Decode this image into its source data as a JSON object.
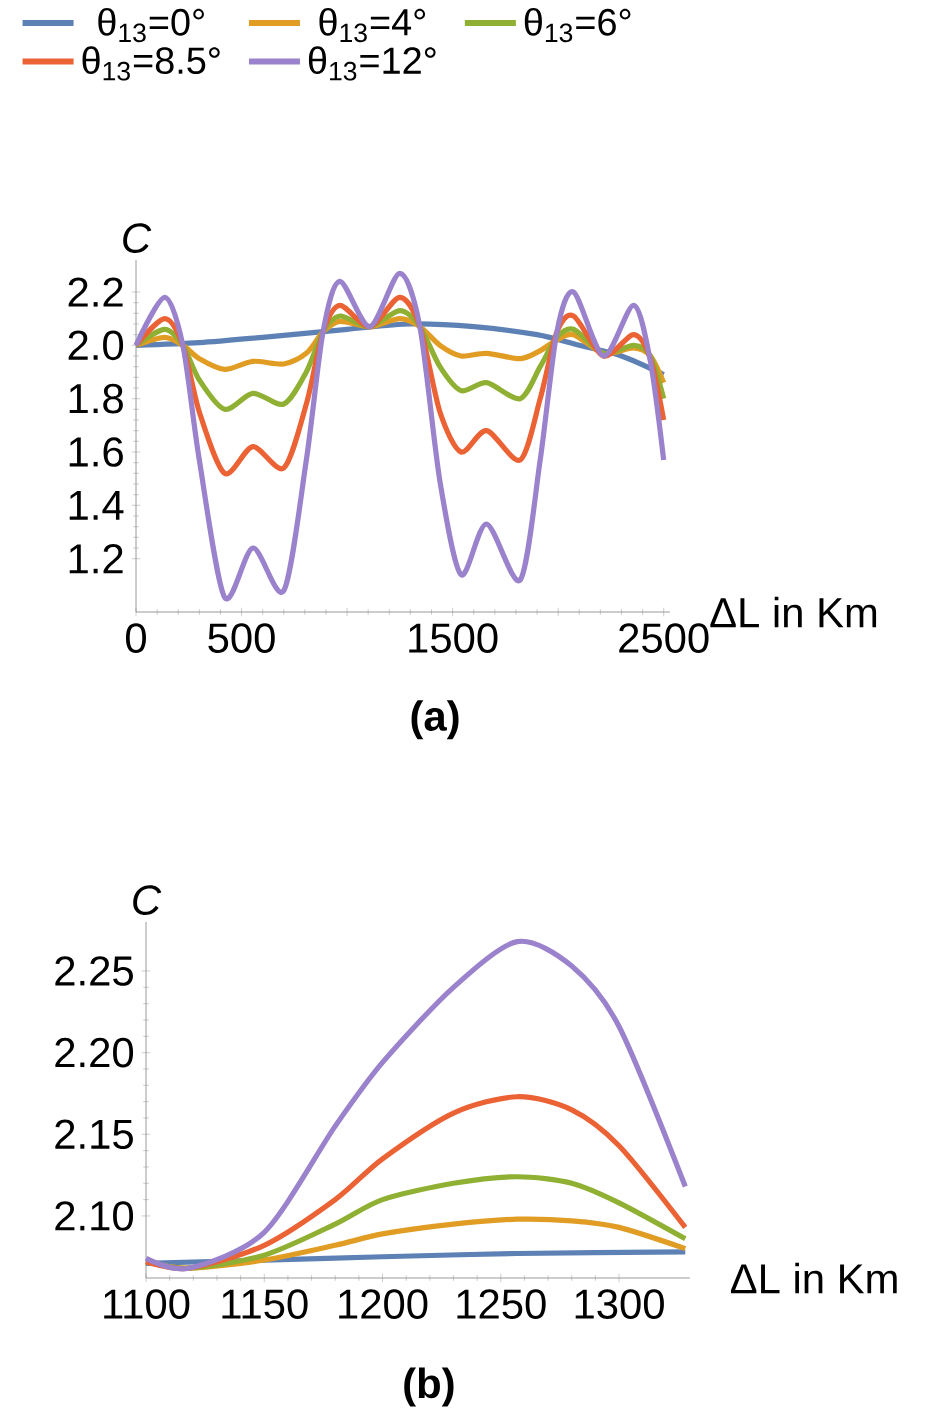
{
  "chart_data": [
    {
      "type": "line",
      "title": "(a)",
      "xlabel": "ΔL in Km",
      "ylabel": "C",
      "legend": "top",
      "xlim": [
        0,
        2530
      ],
      "ylim": [
        1.0,
        2.32
      ],
      "xticks": [
        0,
        500,
        {
          "value": 1000,
          "label": null
        },
        1500,
        {
          "value": 2000,
          "label": null
        },
        2500
      ],
      "yticks": [
        {
          "value": 1.2,
          "label": "1.2"
        },
        {
          "value": 1.4,
          "label": "1.4"
        },
        {
          "value": 1.6,
          "label": "1.6"
        },
        {
          "value": 1.8,
          "label": "1.8"
        },
        {
          "value": 2.0,
          "label": "2.0"
        },
        {
          "value": 2.2,
          "label": "2.2"
        }
      ],
      "x": [
        0,
        136,
        222,
        300,
        420,
        554,
        700,
        807,
        886,
        965,
        1108,
        1250,
        1345,
        1440,
        1540,
        1661,
        1820,
        1915,
        1994,
        2073,
        2215,
        2358,
        2437,
        2500
      ],
      "series": [
        {
          "name": "θ$_{13}$=0°",
          "color": "#5e81b5",
          "x": [
            0,
            300,
            600,
            1000,
            1300,
            1600,
            1900,
            2100,
            2300,
            2500
          ],
          "values": [
            2.0,
            2.01,
            2.03,
            2.06,
            2.08,
            2.07,
            2.04,
            2.0,
            1.96,
            1.89
          ]
        },
        {
          "name": "θ$_{13}$=4°",
          "color": "#e19c24",
          "values": [
            2.0,
            2.03,
            2.0,
            1.95,
            1.91,
            1.94,
            1.93,
            1.97,
            2.05,
            2.09,
            2.07,
            2.1,
            2.07,
            2.0,
            1.96,
            1.97,
            1.95,
            1.98,
            2.02,
            2.04,
            1.97,
            1.99,
            1.96,
            1.86
          ]
        },
        {
          "name": "θ$_{13}$=6°",
          "color": "#8fb032",
          "values": [
            2.0,
            2.06,
            2.0,
            1.87,
            1.76,
            1.82,
            1.78,
            1.9,
            2.05,
            2.11,
            2.07,
            2.13,
            2.07,
            1.92,
            1.83,
            1.86,
            1.8,
            1.92,
            2.03,
            2.06,
            1.97,
            2.0,
            1.96,
            1.8
          ]
        },
        {
          "name": "θ$_{13}$=8.5°",
          "color": "#eb6235",
          "values": [
            2.0,
            2.1,
            2.0,
            1.75,
            1.52,
            1.62,
            1.54,
            1.78,
            2.05,
            2.15,
            2.07,
            2.18,
            2.07,
            1.75,
            1.6,
            1.68,
            1.57,
            1.8,
            2.05,
            2.11,
            1.96,
            2.04,
            1.95,
            1.72
          ]
        },
        {
          "name": "θ$_{13}$=12°",
          "color": "#9a82cc",
          "values": [
            2.0,
            2.18,
            2.0,
            1.57,
            1.055,
            1.24,
            1.08,
            1.57,
            2.05,
            2.24,
            2.07,
            2.27,
            2.07,
            1.49,
            1.14,
            1.33,
            1.12,
            1.57,
            2.05,
            2.2,
            1.96,
            2.15,
            1.94,
            1.57
          ]
        }
      ]
    },
    {
      "type": "line",
      "title": "(b)",
      "xlabel": "ΔL in Km",
      "ylabel": "C",
      "xlim": [
        1100,
        1330
      ],
      "ylim": [
        2.062,
        2.28
      ],
      "xticks": [
        1100,
        1150,
        1200,
        1250,
        1300
      ],
      "yticks": [
        {
          "value": 2.1,
          "label": "2.10"
        },
        {
          "value": 2.15,
          "label": "2.15"
        },
        {
          "value": 2.2,
          "label": "2.20"
        },
        {
          "value": 2.25,
          "label": "2.25"
        }
      ],
      "x": [
        1100,
        1118,
        1150,
        1180,
        1200,
        1230,
        1257,
        1280,
        1300,
        1328
      ],
      "series": [
        {
          "color": "#5e81b5",
          "x": [
            1100,
            1150,
            1200,
            1257,
            1328
          ],
          "values": [
            2.071,
            2.073,
            2.075,
            2.077,
            2.078
          ]
        },
        {
          "color": "#e19c24",
          "values": [
            2.072,
            2.068,
            2.073,
            2.082,
            2.089,
            2.095,
            2.098,
            2.097,
            2.093,
            2.08
          ]
        },
        {
          "color": "#8fb032",
          "values": [
            2.072,
            2.068,
            2.076,
            2.095,
            2.11,
            2.12,
            2.124,
            2.12,
            2.108,
            2.086
          ]
        },
        {
          "color": "#eb6235",
          "values": [
            2.072,
            2.068,
            2.082,
            2.11,
            2.135,
            2.163,
            2.173,
            2.165,
            2.143,
            2.093
          ]
        },
        {
          "color": "#9a82cc",
          "values": [
            2.074,
            2.068,
            2.09,
            2.155,
            2.194,
            2.24,
            2.268,
            2.253,
            2.216,
            2.118
          ]
        }
      ]
    }
  ]
}
